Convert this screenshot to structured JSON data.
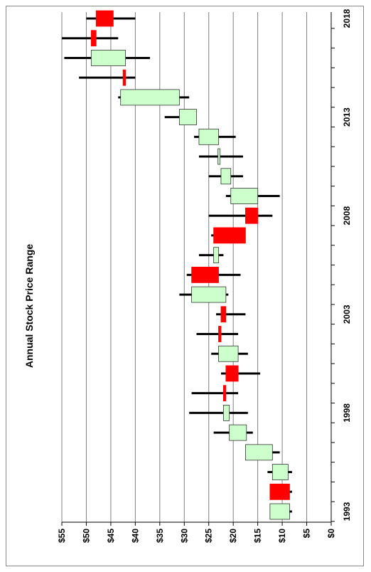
{
  "chart_data": {
    "type": "candlestick",
    "title": "Annual Stock Price Range",
    "value_axis": {
      "min": 0,
      "max": 55,
      "step": 5,
      "tick_labels": [
        "$0",
        "$5",
        "$10",
        "$15",
        "$20",
        "$25",
        "$30",
        "$35",
        "$40",
        "$45",
        "$50",
        "$55"
      ],
      "grid": true
    },
    "year_axis": {
      "tick_labels": [
        "1993",
        "1998",
        "2003",
        "2008",
        "2013",
        "2018"
      ]
    },
    "colors": {
      "up": "#ccffcc",
      "down": "#ff0000",
      "wick": "#000000",
      "grid": "#808080"
    },
    "series": [
      {
        "year": 1993,
        "open": 8.5,
        "close": 12.5,
        "low": 8.0,
        "high": 12.5
      },
      {
        "year": 1994,
        "open": 12.5,
        "close": 8.5,
        "low": 8.0,
        "high": 12.5
      },
      {
        "year": 1995,
        "open": 8.8,
        "close": 12.0,
        "low": 8.0,
        "high": 13.0
      },
      {
        "year": 1996,
        "open": 12.0,
        "close": 17.5,
        "low": 10.5,
        "high": 17.5
      },
      {
        "year": 1997,
        "open": 17.3,
        "close": 20.8,
        "low": 16.0,
        "high": 24.0
      },
      {
        "year": 1998,
        "open": 20.8,
        "close": 22.0,
        "low": 17.0,
        "high": 29.0
      },
      {
        "year": 1999,
        "open": 22.0,
        "close": 21.5,
        "low": 19.0,
        "high": 28.5
      },
      {
        "year": 2000,
        "open": 21.5,
        "close": 19.0,
        "low": 14.5,
        "high": 22.5
      },
      {
        "year": 2001,
        "open": 19.0,
        "close": 23.0,
        "low": 17.0,
        "high": 24.5
      },
      {
        "year": 2002,
        "open": 23.0,
        "close": 22.5,
        "low": 19.0,
        "high": 27.5
      },
      {
        "year": 2003,
        "open": 22.5,
        "close": 21.5,
        "low": 17.5,
        "high": 23.5
      },
      {
        "year": 2004,
        "open": 21.5,
        "close": 28.5,
        "low": 21.0,
        "high": 31.0
      },
      {
        "year": 2005,
        "open": 28.5,
        "close": 23.0,
        "low": 18.5,
        "high": 29.5
      },
      {
        "year": 2006,
        "open": 23.0,
        "close": 24.0,
        "low": 22.0,
        "high": 27.0
      },
      {
        "year": 2007,
        "open": 24.0,
        "close": 17.5,
        "low": 17.5,
        "high": 24.5
      },
      {
        "year": 2008,
        "open": 17.5,
        "close": 15.0,
        "low": 12.0,
        "high": 25.0
      },
      {
        "year": 2009,
        "open": 15.0,
        "close": 20.5,
        "low": 10.5,
        "high": 21.5
      },
      {
        "year": 2010,
        "open": 20.5,
        "close": 22.5,
        "low": 18.0,
        "high": 25.0
      },
      {
        "year": 2011,
        "open": 22.8,
        "close": 23.0,
        "low": 18.0,
        "high": 27.0
      },
      {
        "year": 2012,
        "open": 23.0,
        "close": 27.0,
        "low": 19.5,
        "high": 28.0
      },
      {
        "year": 2013,
        "open": 27.5,
        "close": 31.0,
        "low": 27.5,
        "high": 34.0
      },
      {
        "year": 2014,
        "open": 31.0,
        "close": 43.0,
        "low": 29.0,
        "high": 43.5
      },
      {
        "year": 2015,
        "open": 42.5,
        "close": 42.0,
        "low": 40.0,
        "high": 51.5
      },
      {
        "year": 2016,
        "open": 42.0,
        "close": 49.0,
        "low": 37.0,
        "high": 54.5
      },
      {
        "year": 2017,
        "open": 49.0,
        "close": 48.0,
        "low": 43.5,
        "high": 55.0
      },
      {
        "year": 2018,
        "open": 48.0,
        "close": 44.5,
        "low": 40.0,
        "high": 50.0
      }
    ]
  }
}
